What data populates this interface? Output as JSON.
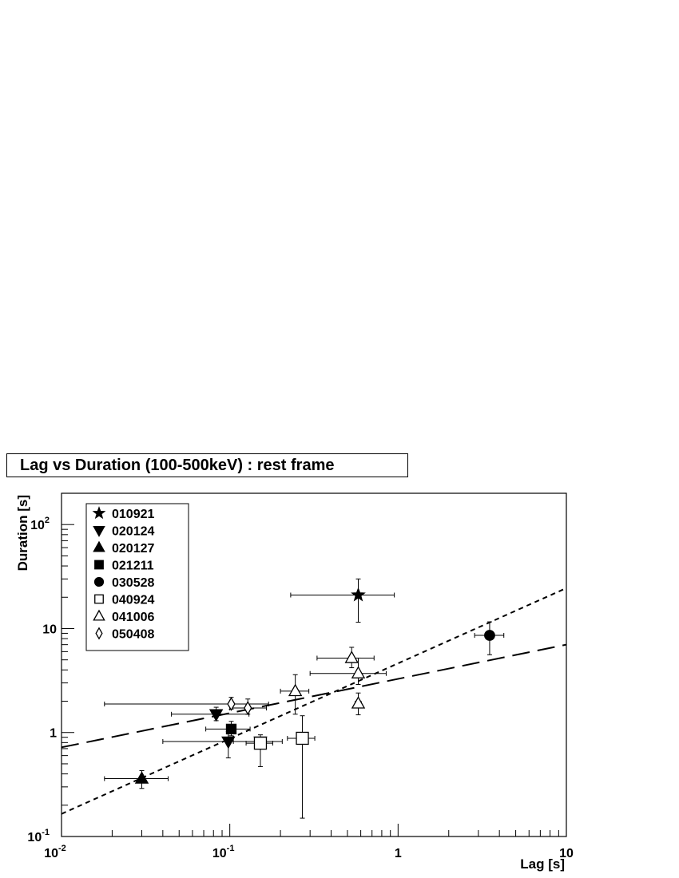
{
  "chart_data": {
    "type": "scatter",
    "title": "Lag vs Duration (100-500keV) : rest frame",
    "xlabel": "Lag [s]",
    "ylabel": "Duration [s]",
    "x_scale": "log",
    "y_scale": "log",
    "xlim": [
      0.01,
      10
    ],
    "ylim": [
      0.1,
      200
    ],
    "x_tick_labels": [
      {
        "value": 0.01,
        "base": "10",
        "exp": "-2"
      },
      {
        "value": 0.1,
        "base": "10",
        "exp": "-1"
      },
      {
        "value": 1,
        "base": "1",
        "exp": ""
      },
      {
        "value": 10,
        "base": "10",
        "exp": ""
      }
    ],
    "y_tick_labels": [
      {
        "value": 0.1,
        "base": "10",
        "exp": "-1"
      },
      {
        "value": 1,
        "base": "1",
        "exp": ""
      },
      {
        "value": 10,
        "base": "10",
        "exp": ""
      },
      {
        "value": 100,
        "base": "10",
        "exp": "2"
      }
    ],
    "grid": false,
    "legend_position": "top-left",
    "series": [
      {
        "name": "010921",
        "marker": "star",
        "filled": true,
        "points": [
          {
            "x": 0.58,
            "y": 21,
            "xerr": [
              0.23,
              0.95
            ],
            "yerr": [
              11.5,
              30
            ]
          }
        ]
      },
      {
        "name": "020124",
        "marker": "triangle-down",
        "filled": true,
        "points": [
          {
            "x": 0.083,
            "y": 1.5,
            "xerr": [
              0.045,
              0.13
            ],
            "yerr": [
              1.3,
              1.75
            ]
          },
          {
            "x": 0.098,
            "y": 0.82,
            "xerr": [
              0.04,
              0.155
            ],
            "yerr": [
              0.57,
              1.02
            ]
          },
          {
            "x": 0.152,
            "y": 0.82,
            "xerr": [
              0.105,
              0.205
            ],
            "yerr": [
              0.47,
              0.95
            ]
          }
        ]
      },
      {
        "name": "020127",
        "marker": "triangle-up",
        "filled": true,
        "points": [
          {
            "x": 0.03,
            "y": 0.36,
            "xerr": [
              0.018,
              0.043
            ],
            "yerr": [
              0.29,
              0.43
            ]
          }
        ]
      },
      {
        "name": "021211",
        "marker": "square",
        "filled": true,
        "points": [
          {
            "x": 0.102,
            "y": 1.08,
            "xerr": [
              0.072,
              0.132
            ],
            "yerr": [
              0.93,
              1.28
            ]
          }
        ]
      },
      {
        "name": "030528",
        "marker": "circle",
        "filled": true,
        "points": [
          {
            "x": 3.5,
            "y": 8.6,
            "xerr": [
              2.85,
              4.25
            ],
            "yerr": [
              5.6,
              11.6
            ]
          }
        ]
      },
      {
        "name": "040924",
        "marker": "square",
        "filled": false,
        "points": [
          {
            "x": 0.152,
            "y": 0.79,
            "xerr": [
              0.125,
              0.18
            ],
            "yerr": [
              0.72,
              0.88
            ]
          },
          {
            "x": 0.27,
            "y": 0.88,
            "xerr": [
              0.22,
              0.32
            ],
            "yerr": [
              0.15,
              1.45
            ]
          }
        ]
      },
      {
        "name": "041006",
        "marker": "triangle-up",
        "filled": false,
        "points": [
          {
            "x": 0.53,
            "y": 5.2,
            "xerr": [
              0.33,
              0.72
            ],
            "yerr": [
              4.2,
              6.6
            ]
          },
          {
            "x": 0.58,
            "y": 3.7,
            "xerr": [
              0.3,
              0.85
            ],
            "yerr": [
              2.9,
              5.2
            ]
          },
          {
            "x": 0.245,
            "y": 2.5,
            "xerr": [
              0.2,
              0.295
            ],
            "yerr": [
              1.5,
              3.6
            ]
          },
          {
            "x": 0.58,
            "y": 1.9,
            "xerr": [
              0.555,
              0.605
            ],
            "yerr": [
              1.48,
              2.4
            ]
          }
        ]
      },
      {
        "name": "050408",
        "marker": "diamond",
        "filled": false,
        "points": [
          {
            "x": 0.102,
            "y": 1.88,
            "xerr": [
              0.018,
              0.17
            ],
            "yerr": [
              1.68,
              2.18
            ]
          },
          {
            "x": 0.128,
            "y": 1.72,
            "xerr": [
              0.1,
              0.165
            ],
            "yerr": [
              1.5,
              2.1
            ]
          }
        ]
      }
    ],
    "fit_lines": [
      {
        "style": "long-dash",
        "x": [
          0.01,
          10
        ],
        "y": [
          0.72,
          7.0
        ]
      },
      {
        "style": "short-dash",
        "x": [
          0.01,
          10
        ],
        "y": [
          0.165,
          24.5
        ]
      }
    ]
  }
}
